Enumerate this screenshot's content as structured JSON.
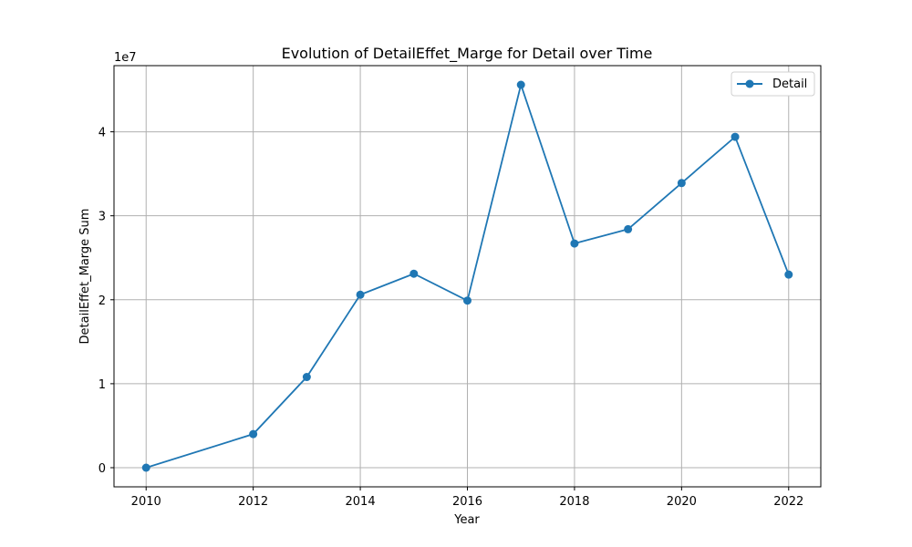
{
  "chart_data": {
    "type": "line",
    "title": "Evolution of DetailEffet_Marge for Detail over Time",
    "xlabel": "Year",
    "ylabel": "DetailEffet_Marge Sum",
    "y_offset_label": "1e7",
    "x": [
      2010,
      2012,
      2013,
      2014,
      2015,
      2016,
      2017,
      2018,
      2019,
      2020,
      2021,
      2022
    ],
    "series": [
      {
        "name": "Detail",
        "color": "#1f77b4",
        "marker": "circle",
        "values": [
          0,
          4000000,
          10800000,
          20600000,
          23100000,
          19900000,
          45600000,
          26700000,
          28400000,
          33900000,
          39400000,
          23000000
        ]
      }
    ],
    "xlim": [
      2009.4,
      2022.6
    ],
    "ylim": [
      -2280000,
      47880000
    ],
    "x_ticks": [
      2010,
      2012,
      2014,
      2016,
      2018,
      2020,
      2022
    ],
    "x_tick_labels": [
      "2010",
      "2012",
      "2014",
      "2016",
      "2018",
      "2020",
      "2022"
    ],
    "y_ticks": [
      0,
      10000000,
      20000000,
      30000000,
      40000000
    ],
    "y_tick_labels": [
      "0",
      "1",
      "2",
      "3",
      "4"
    ],
    "grid": true,
    "legend": "top-right"
  }
}
